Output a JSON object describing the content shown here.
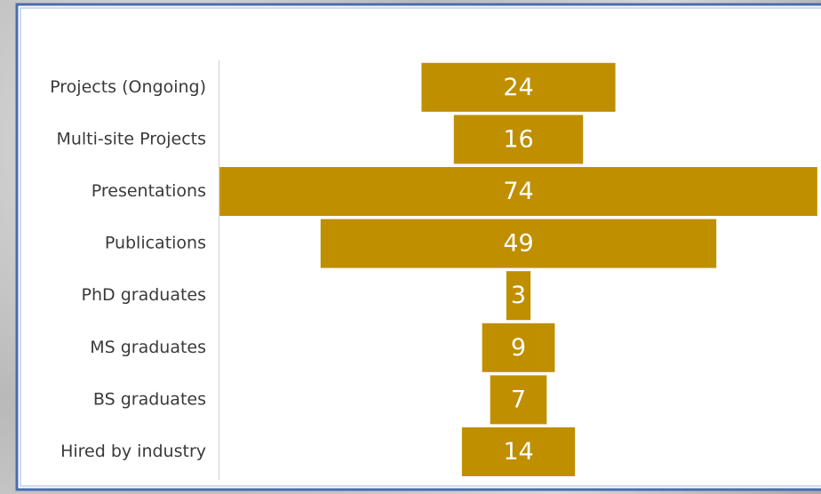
{
  "chart_data": {
    "type": "funnel",
    "categories": [
      "Projects (Ongoing)",
      "Multi-site Projects",
      "Presentations",
      "Publications",
      "PhD graduates",
      "MS graduates",
      "BS graduates",
      "Hired by industry"
    ],
    "values": [
      24,
      16,
      74,
      49,
      3,
      9,
      7,
      14
    ],
    "color": "#bf8f00"
  }
}
